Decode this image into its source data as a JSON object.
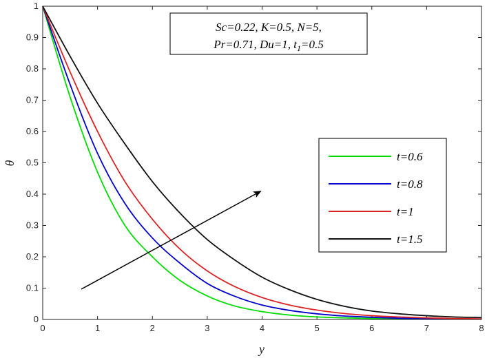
{
  "chart_data": {
    "type": "line",
    "xlabel": "y",
    "ylabel": "θ",
    "xlim": [
      0,
      8
    ],
    "ylim": [
      0,
      1
    ],
    "xticks": [
      0,
      1,
      2,
      3,
      4,
      5,
      6,
      7,
      8
    ],
    "yticks": [
      0,
      0.1,
      0.2,
      0.3,
      0.4,
      0.5,
      0.6,
      0.7,
      0.8,
      0.9,
      1
    ],
    "grid": false,
    "legend_position": "right",
    "parameters": {
      "line1": "Sc=0.22, K=0.5, N=5,",
      "line2_main": "Pr=0.71, Du=1, t",
      "line2_sub": "1",
      "line2_end": "=0.5"
    },
    "annotation": "arrow indicating increasing t",
    "series": [
      {
        "name": "t=0.6",
        "color": "#00dd00",
        "x": [
          0,
          0.5,
          1,
          1.5,
          2,
          2.5,
          3,
          3.5,
          4,
          4.5,
          5,
          5.5,
          6,
          6.5,
          7,
          7.5,
          8
        ],
        "y": [
          1,
          0.71,
          0.47,
          0.3,
          0.2,
          0.125,
          0.075,
          0.043,
          0.025,
          0.014,
          0.008,
          0.005,
          0.003,
          0.002,
          0.001,
          0.001,
          0.001
        ]
      },
      {
        "name": "t=0.8",
        "color": "#0000cc",
        "x": [
          0,
          0.5,
          1,
          1.5,
          2,
          2.5,
          3,
          3.5,
          4,
          4.5,
          5,
          5.5,
          6,
          6.5,
          7,
          7.5,
          8
        ],
        "y": [
          1,
          0.75,
          0.53,
          0.37,
          0.26,
          0.18,
          0.115,
          0.074,
          0.046,
          0.029,
          0.018,
          0.011,
          0.007,
          0.004,
          0.003,
          0.002,
          0.001
        ]
      },
      {
        "name": "t=1",
        "color": "#dd2222",
        "x": [
          0,
          0.5,
          1,
          1.5,
          2,
          2.5,
          3,
          3.5,
          4,
          4.5,
          5,
          5.5,
          6,
          6.5,
          7,
          7.5,
          8
        ],
        "y": [
          1,
          0.79,
          0.6,
          0.44,
          0.32,
          0.225,
          0.155,
          0.105,
          0.07,
          0.046,
          0.03,
          0.019,
          0.012,
          0.008,
          0.005,
          0.003,
          0.002
        ]
      },
      {
        "name": "t=1.5",
        "color": "#111111",
        "x": [
          0,
          0.5,
          1,
          1.5,
          2,
          2.5,
          3,
          3.5,
          4,
          4.5,
          5,
          5.5,
          6,
          6.5,
          7,
          7.5,
          8
        ],
        "y": [
          1,
          0.84,
          0.69,
          0.56,
          0.44,
          0.34,
          0.255,
          0.19,
          0.135,
          0.095,
          0.064,
          0.042,
          0.027,
          0.018,
          0.012,
          0.008,
          0.006
        ]
      }
    ]
  }
}
